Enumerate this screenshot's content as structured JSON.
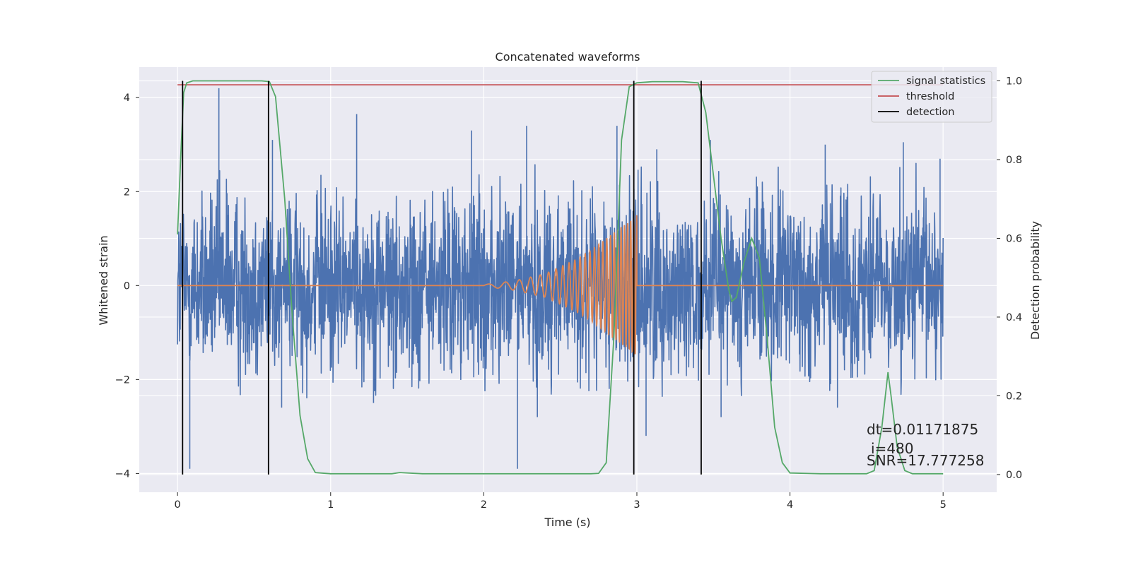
{
  "chart_data": {
    "type": "line",
    "title": "Concatenated waveforms",
    "xlabel": "Time (s)",
    "ylabel_left": "Whitened strain",
    "ylabel_right": "Detection probability",
    "xlim": [
      -0.25,
      5.35
    ],
    "ylim_left": [
      -4.4,
      4.65
    ],
    "ylim_right": [
      -0.045,
      1.035
    ],
    "x_ticks": [
      0,
      1,
      2,
      3,
      4,
      5
    ],
    "y_ticks_left": [
      -4,
      -2,
      0,
      2,
      4
    ],
    "y_ticks_right": [
      0.0,
      0.2,
      0.4,
      0.6,
      0.8,
      1.0
    ],
    "grid": true,
    "legend_position": "top-right",
    "colors": {
      "strain": "#4c72b0",
      "waveform": "#dd8452",
      "signal_statistics": "#55a868",
      "threshold": "#c44e52",
      "detection": "#000000",
      "background": "#eaeaf2",
      "grid": "#ffffff"
    },
    "series": [
      {
        "name": "signal statistics",
        "axis": "right",
        "x": [
          0.0,
          0.02,
          0.04,
          0.06,
          0.1,
          0.2,
          0.4,
          0.55,
          0.6,
          0.64,
          0.7,
          0.75,
          0.8,
          0.85,
          0.9,
          1.0,
          1.2,
          1.4,
          1.45,
          1.6,
          1.8,
          2.0,
          2.2,
          2.4,
          2.5,
          2.6,
          2.7,
          2.75,
          2.8,
          2.85,
          2.9,
          2.95,
          3.0,
          3.1,
          3.3,
          3.4,
          3.45,
          3.5,
          3.55,
          3.6,
          3.62,
          3.65,
          3.7,
          3.75,
          3.8,
          3.85,
          3.9,
          3.95,
          4.0,
          4.2,
          4.4,
          4.5,
          4.55,
          4.6,
          4.64,
          4.66,
          4.7,
          4.75,
          4.8,
          4.85,
          5.0
        ],
        "values": [
          0.61,
          0.8,
          0.97,
          0.995,
          1.0,
          1.0,
          1.0,
          1.0,
          0.998,
          0.96,
          0.7,
          0.4,
          0.15,
          0.04,
          0.005,
          0.002,
          0.002,
          0.002,
          0.005,
          0.002,
          0.002,
          0.002,
          0.002,
          0.002,
          0.002,
          0.002,
          0.002,
          0.003,
          0.03,
          0.35,
          0.85,
          0.985,
          0.995,
          0.998,
          0.998,
          0.995,
          0.92,
          0.76,
          0.6,
          0.47,
          0.44,
          0.45,
          0.54,
          0.6,
          0.55,
          0.35,
          0.12,
          0.03,
          0.004,
          0.002,
          0.002,
          0.002,
          0.01,
          0.12,
          0.26,
          0.2,
          0.07,
          0.01,
          0.002,
          0.002,
          0.002
        ]
      },
      {
        "name": "threshold",
        "axis": "right",
        "x": [
          0.0,
          5.0
        ],
        "values": [
          0.99,
          0.99
        ]
      },
      {
        "name": "detection",
        "axis": "right",
        "x": [
          0.033,
          0.594,
          2.98,
          3.42
        ],
        "values": [
          1.0,
          1.0,
          1.0,
          1.0
        ]
      }
    ],
    "strain": {
      "axis": "left",
      "x_range": [
        0.0,
        5.0
      ],
      "envelope_x": [
        0.0,
        0.5,
        1.0,
        1.5,
        2.0,
        2.5,
        3.0,
        3.5,
        4.0,
        4.5,
        5.0
      ],
      "envelope_upper": [
        2.4,
        2.5,
        2.4,
        2.5,
        2.5,
        2.7,
        2.6,
        2.5,
        2.5,
        2.6,
        2.5
      ],
      "envelope_lower": [
        -2.2,
        -2.3,
        -2.3,
        -2.3,
        -2.4,
        -2.2,
        -2.3,
        -2.2,
        -2.3,
        -2.3,
        -2.2
      ],
      "spikes_x": [
        0.08,
        0.27,
        0.62,
        0.68,
        1.17,
        1.28,
        1.92,
        2.22,
        2.28,
        2.35,
        2.87,
        3.06,
        3.13,
        3.48,
        3.55,
        4.23,
        4.31,
        4.74,
        4.98
      ],
      "spikes_y": [
        -3.9,
        4.2,
        3.1,
        -2.6,
        3.65,
        -2.5,
        3.3,
        -3.9,
        3.4,
        -2.8,
        3.4,
        -3.2,
        2.9,
        3.1,
        -2.8,
        3.0,
        -2.6,
        3.05,
        2.7
      ]
    },
    "waveform": {
      "axis": "left",
      "name": "",
      "flat_before": [
        0.0,
        2.0
      ],
      "chirp_x": [
        2.0,
        3.0
      ],
      "chirp_amplitude_x": [
        2.0,
        2.2,
        2.4,
        2.6,
        2.7,
        2.8,
        2.9,
        2.95,
        3.0
      ],
      "chirp_amplitude": [
        0.02,
        0.1,
        0.25,
        0.55,
        0.75,
        1.0,
        1.25,
        1.35,
        1.5
      ],
      "flat_after": [
        3.0,
        5.0
      ]
    },
    "annotations": [
      "dt=0.01171875",
      "i=480",
      "SNR=17.777258"
    ]
  }
}
